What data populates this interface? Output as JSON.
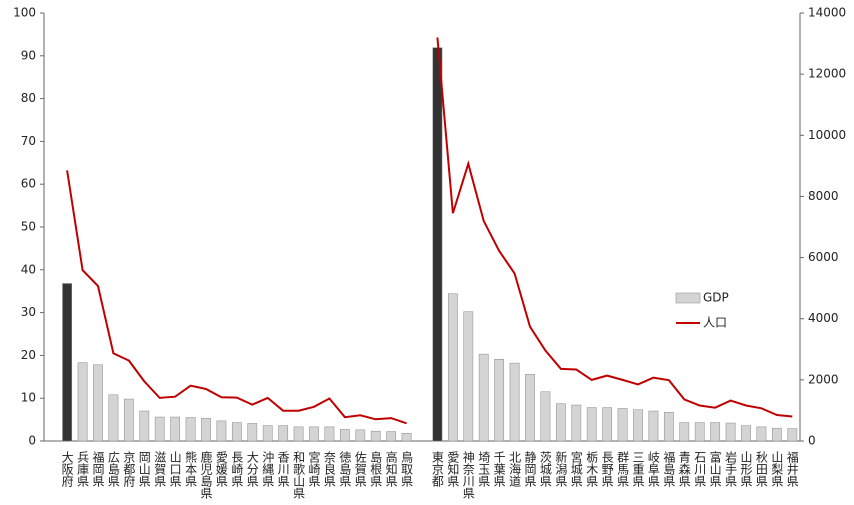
{
  "chart_data": {
    "type": "bar_line",
    "categories": [
      null,
      "大阪府",
      "兵庫県",
      "福岡県",
      "広島県",
      "京都府",
      "岡山県",
      "滋賀県",
      "山口県",
      "熊本県",
      "鹿児島県",
      "愛媛県",
      "長崎県",
      "大分県",
      "沖縄県",
      "香川県",
      "和歌山県",
      "宮崎県",
      "奈良県",
      "徳島県",
      "佐賀県",
      "島根県",
      "高知県",
      "鳥取県",
      null,
      "東京都",
      "愛知県",
      "神奈川県",
      "埼玉県",
      "千葉県",
      "北海道",
      "静岡県",
      "茨城県",
      "新潟県",
      "宮城県",
      "栃木県",
      "長野県",
      "群馬県",
      "三重県",
      "岐阜県",
      "福島県",
      "青森県",
      "石川県",
      "富山県",
      "岩手県",
      "山形県",
      "秋田県",
      "山梨県",
      "福井県"
    ],
    "series": [
      {
        "name": "GDP",
        "kind": "bar",
        "axis": "y",
        "color": "#d4d4d4",
        "colors": [
          null,
          "#333333",
          "#d4d4d4",
          "#d4d4d4",
          "#d4d4d4",
          "#d4d4d4",
          "#d4d4d4",
          "#d4d4d4",
          "#d4d4d4",
          "#d4d4d4",
          "#d4d4d4",
          "#d4d4d4",
          "#d4d4d4",
          "#d4d4d4",
          "#d4d4d4",
          "#d4d4d4",
          "#d4d4d4",
          "#d4d4d4",
          "#d4d4d4",
          "#d4d4d4",
          "#d4d4d4",
          "#d4d4d4",
          "#d4d4d4",
          "#d4d4d4",
          null,
          "#333333",
          "#d4d4d4",
          "#d4d4d4",
          "#d4d4d4",
          "#d4d4d4",
          "#d4d4d4",
          "#d4d4d4",
          "#d4d4d4",
          "#d4d4d4",
          "#d4d4d4",
          "#d4d4d4",
          "#d4d4d4",
          "#d4d4d4",
          "#d4d4d4",
          "#d4d4d4",
          "#d4d4d4",
          "#d4d4d4",
          "#d4d4d4",
          "#d4d4d4",
          "#d4d4d4",
          "#d4d4d4",
          "#d4d4d4",
          "#d4d4d4",
          "#d4d4d4"
        ],
        "values": [
          null,
          36.8,
          18.3,
          17.8,
          10.8,
          9.8,
          7.0,
          5.6,
          5.6,
          5.5,
          5.3,
          4.7,
          4.3,
          4.1,
          3.6,
          3.6,
          3.3,
          3.3,
          3.3,
          2.7,
          2.6,
          2.3,
          2.2,
          1.8,
          null,
          91.9,
          34.4,
          30.2,
          20.3,
          19.1,
          18.2,
          15.6,
          11.5,
          8.7,
          8.4,
          7.8,
          7.8,
          7.6,
          7.3,
          7.0,
          6.7,
          4.3,
          4.3,
          4.3,
          4.2,
          3.6,
          3.3,
          3.0,
          2.9
        ]
      },
      {
        "name": "人口",
        "kind": "line",
        "axis": "y2",
        "color": "#c00000",
        "values": [
          null,
          8850,
          5590,
          5070,
          2870,
          2630,
          1950,
          1410,
          1450,
          1810,
          1700,
          1430,
          1420,
          1190,
          1410,
          990,
          990,
          1120,
          1390,
          780,
          840,
          710,
          750,
          580,
          null,
          13200,
          7450,
          9070,
          7200,
          6220,
          5480,
          3740,
          2960,
          2360,
          2340,
          2000,
          2140,
          2000,
          1850,
          2070,
          1990,
          1360,
          1160,
          1090,
          1320,
          1160,
          1070,
          850,
          800
        ]
      }
    ],
    "ylim": [
      0,
      100
    ],
    "yticks": [
      0,
      10,
      20,
      30,
      40,
      50,
      60,
      70,
      80,
      90,
      100
    ],
    "y2lim": [
      0,
      14000
    ],
    "y2ticks": [
      0,
      2000,
      4000,
      6000,
      8000,
      10000,
      12000,
      14000
    ],
    "grid": false
  }
}
